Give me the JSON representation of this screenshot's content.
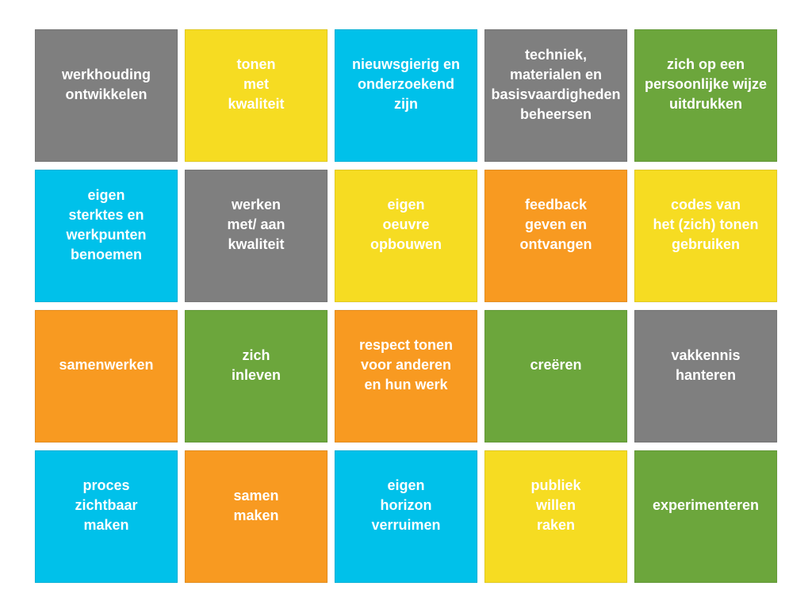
{
  "colors": {
    "gray": "#7f7f7f",
    "yellow": "#f6dc22",
    "cyan": "#00c1ea",
    "green": "#6ca63c",
    "orange": "#f89a21"
  },
  "cards": [
    {
      "label": "werkhouding\nontwikkelen",
      "color": "gray"
    },
    {
      "label": "tonen\nmet\nkwaliteit",
      "color": "yellow"
    },
    {
      "label": "nieuwsgierig en\nonderzoekend\nzijn",
      "color": "cyan"
    },
    {
      "label": "techniek,\nmaterialen en\nbasisvaardigheden\nbeheersen",
      "color": "gray"
    },
    {
      "label": "zich op een\npersoonlijke wijze\nuitdrukken",
      "color": "green"
    },
    {
      "label": "eigen\nsterktes en\nwerkpunten\nbenoemen",
      "color": "cyan"
    },
    {
      "label": "werken\nmet/ aan\nkwaliteit",
      "color": "gray"
    },
    {
      "label": "eigen\noeuvre\nopbouwen",
      "color": "yellow"
    },
    {
      "label": "feedback\ngeven en\nontvangen",
      "color": "orange"
    },
    {
      "label": "codes van\nhet (zich) tonen\ngebruiken",
      "color": "yellow"
    },
    {
      "label": "samenwerken",
      "color": "orange"
    },
    {
      "label": "zich\ninleven",
      "color": "green"
    },
    {
      "label": "respect tonen\nvoor anderen\nen hun werk",
      "color": "orange"
    },
    {
      "label": "creëren",
      "color": "green"
    },
    {
      "label": "vakkennis\nhanteren",
      "color": "gray"
    },
    {
      "label": "proces\nzichtbaar\nmaken",
      "color": "cyan"
    },
    {
      "label": "samen\nmaken",
      "color": "orange"
    },
    {
      "label": "eigen\nhorizon\nverruimen",
      "color": "cyan"
    },
    {
      "label": "publiek\nwillen\nraken",
      "color": "yellow"
    },
    {
      "label": "experimenteren",
      "color": "green"
    }
  ]
}
